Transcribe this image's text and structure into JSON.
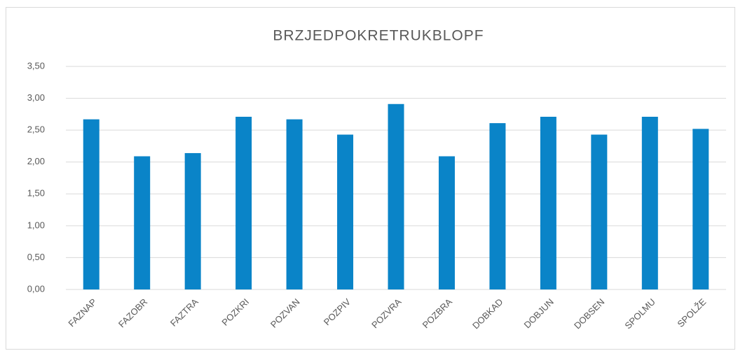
{
  "chart_data": {
    "type": "bar",
    "title": "BRZJEDPOKRETRUKBLOPF",
    "categories": [
      "FAZNAP",
      "FAZOBR",
      "FAZTRA",
      "POZKRI",
      "POZVAN",
      "POZPIV",
      "POZVRA",
      "POZBRA",
      "DOBKAD",
      "DOBJUN",
      "DOBSEN",
      "SPOLMU",
      "SPOLŽE"
    ],
    "values": [
      2.67,
      2.09,
      2.14,
      2.71,
      2.67,
      2.43,
      2.91,
      2.09,
      2.61,
      2.71,
      2.43,
      2.71,
      2.52
    ],
    "color": "#0a84c8",
    "ylim": [
      0,
      3.5
    ],
    "yticks": [
      {
        "value": 0,
        "label": "0,00"
      },
      {
        "value": 0.5,
        "label": "0,50"
      },
      {
        "value": 1,
        "label": "1,00"
      },
      {
        "value": 1.5,
        "label": "1,50"
      },
      {
        "value": 2,
        "label": "2,00"
      },
      {
        "value": 2.5,
        "label": "2,50"
      },
      {
        "value": 3,
        "label": "3,00"
      },
      {
        "value": 3.5,
        "label": "3,50"
      }
    ],
    "grid": true
  }
}
